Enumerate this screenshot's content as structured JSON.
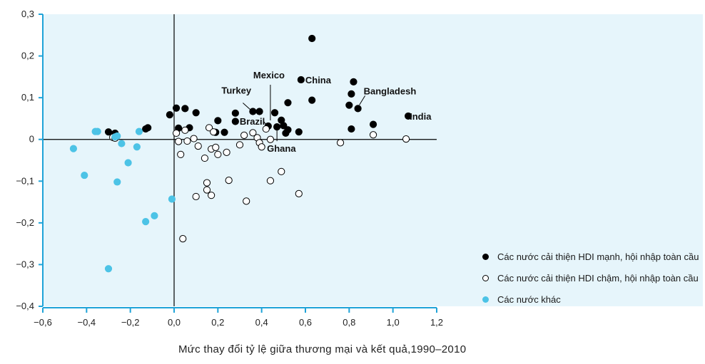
{
  "chart_data": {
    "type": "scatter",
    "xlabel": "Mức thay đổi tỷ lệ giữa thương mại và kết quả,1990–2010",
    "ylabel": "",
    "xlim": [
      -0.6,
      1.2
    ],
    "ylim": [
      -0.4,
      0.3
    ],
    "x_ticks": [
      "−0,6",
      "−0,4",
      "−0,2",
      "0,0",
      "0,2",
      "0,4",
      "0,6",
      "0,8",
      "1,0",
      "1,2"
    ],
    "x_tick_values": [
      -0.6,
      -0.4,
      -0.2,
      0.0,
      0.2,
      0.4,
      0.6,
      0.8,
      1.0,
      1.2
    ],
    "y_ticks": [
      "0,3",
      "0,2",
      "0,1",
      "0",
      "−0,1",
      "−0,2",
      "−0,3",
      "−0,4"
    ],
    "y_tick_values": [
      0.3,
      0.2,
      0.1,
      0,
      -0.1,
      -0.2,
      -0.3,
      -0.4
    ],
    "colors": {
      "strong": "#000000",
      "slow": "#ffffff",
      "other": "#4cc3e6",
      "axis": "#1fa3d8",
      "background": "#e6f5fb"
    },
    "legend_position": "bottom-right",
    "series": [
      {
        "name": "Các nước cải thiện HDI mạnh, hội nhập toàn cầu",
        "points": [
          [
            -0.3,
            0.018
          ],
          [
            -0.27,
            0.015
          ],
          [
            -0.13,
            0.025
          ],
          [
            -0.12,
            0.028
          ],
          [
            -0.02,
            0.059
          ],
          [
            0.01,
            0.075
          ],
          [
            0.05,
            0.074
          ],
          [
            0.1,
            0.064
          ],
          [
            0.02,
            0.027
          ],
          [
            0.07,
            0.028
          ],
          [
            0.2,
            0.045
          ],
          [
            0.19,
            0.017
          ],
          [
            0.23,
            0.017
          ],
          [
            0.28,
            0.063
          ],
          [
            0.28,
            0.043
          ],
          [
            0.36,
            0.067
          ],
          [
            0.39,
            0.067
          ],
          [
            0.43,
            0.032
          ],
          [
            0.46,
            0.064
          ],
          [
            0.47,
            0.03
          ],
          [
            0.49,
            0.046
          ],
          [
            0.5,
            0.033
          ],
          [
            0.51,
            0.015
          ],
          [
            0.52,
            0.088
          ],
          [
            0.52,
            0.023
          ],
          [
            0.57,
            0.018
          ],
          [
            0.58,
            0.143
          ],
          [
            0.63,
            0.094
          ],
          [
            0.63,
            0.242
          ],
          [
            0.8,
            0.082
          ],
          [
            0.81,
            0.109
          ],
          [
            0.82,
            0.138
          ],
          [
            0.84,
            0.074
          ],
          [
            0.81,
            0.025
          ],
          [
            0.91,
            0.036
          ],
          [
            1.07,
            0.056
          ]
        ]
      },
      {
        "name": "Các nước cải thiện HDI chậm, hội nhập toàn cầu",
        "points": [
          [
            -0.28,
            0.005
          ],
          [
            -0.27,
            0.003
          ],
          [
            0.01,
            0.015
          ],
          [
            0.02,
            -0.005
          ],
          [
            0.03,
            -0.036
          ],
          [
            0.05,
            0.022
          ],
          [
            0.06,
            -0.004
          ],
          [
            0.09,
            0.002
          ],
          [
            0.1,
            -0.137
          ],
          [
            0.11,
            -0.016
          ],
          [
            0.14,
            -0.045
          ],
          [
            0.15,
            -0.104
          ],
          [
            0.15,
            -0.121
          ],
          [
            0.16,
            0.028
          ],
          [
            0.17,
            -0.134
          ],
          [
            0.17,
            -0.023
          ],
          [
            0.18,
            0.018
          ],
          [
            0.19,
            -0.019
          ],
          [
            0.2,
            -0.036
          ],
          [
            0.24,
            -0.031
          ],
          [
            0.25,
            -0.098
          ],
          [
            0.04,
            -0.238
          ],
          [
            0.3,
            -0.013
          ],
          [
            0.32,
            0.01
          ],
          [
            0.33,
            -0.148
          ],
          [
            0.36,
            0.016
          ],
          [
            0.38,
            0.004
          ],
          [
            0.39,
            -0.008
          ],
          [
            0.4,
            -0.018
          ],
          [
            0.42,
            0.025
          ],
          [
            0.44,
            -0.099
          ],
          [
            0.44,
            0.0
          ],
          [
            0.49,
            -0.077
          ],
          [
            0.57,
            -0.13
          ],
          [
            0.76,
            -0.008
          ],
          [
            0.91,
            0.011
          ],
          [
            1.06,
            0.001
          ]
        ]
      },
      {
        "name": "Các nước khác",
        "points": [
          [
            -0.46,
            -0.022
          ],
          [
            -0.41,
            -0.086
          ],
          [
            -0.35,
            0.019
          ],
          [
            -0.36,
            0.019
          ],
          [
            -0.27,
            0.006
          ],
          [
            -0.26,
            0.008
          ],
          [
            -0.26,
            -0.102
          ],
          [
            -0.24,
            -0.01
          ],
          [
            -0.21,
            -0.056
          ],
          [
            -0.17,
            -0.018
          ],
          [
            -0.16,
            0.019
          ],
          [
            -0.13,
            -0.197
          ],
          [
            -0.09,
            -0.183
          ],
          [
            -0.3,
            -0.31
          ],
          [
            -0.01,
            -0.143
          ]
        ]
      }
    ],
    "annotations": [
      {
        "text": "China",
        "point": [
          0.58,
          0.143
        ]
      },
      {
        "text": "Mexico",
        "point": [
          0.44,
          0.032
        ]
      },
      {
        "text": "Turkey",
        "point": [
          0.36,
          0.067
        ]
      },
      {
        "text": "Brazil",
        "point": [
          0.43,
          0.032
        ]
      },
      {
        "text": "Bangladesh",
        "point": [
          0.84,
          0.074
        ]
      },
      {
        "text": "India",
        "point": [
          1.07,
          0.056
        ]
      },
      {
        "text": "Ghana",
        "point": [
          0.47,
          0.03
        ]
      }
    ]
  }
}
